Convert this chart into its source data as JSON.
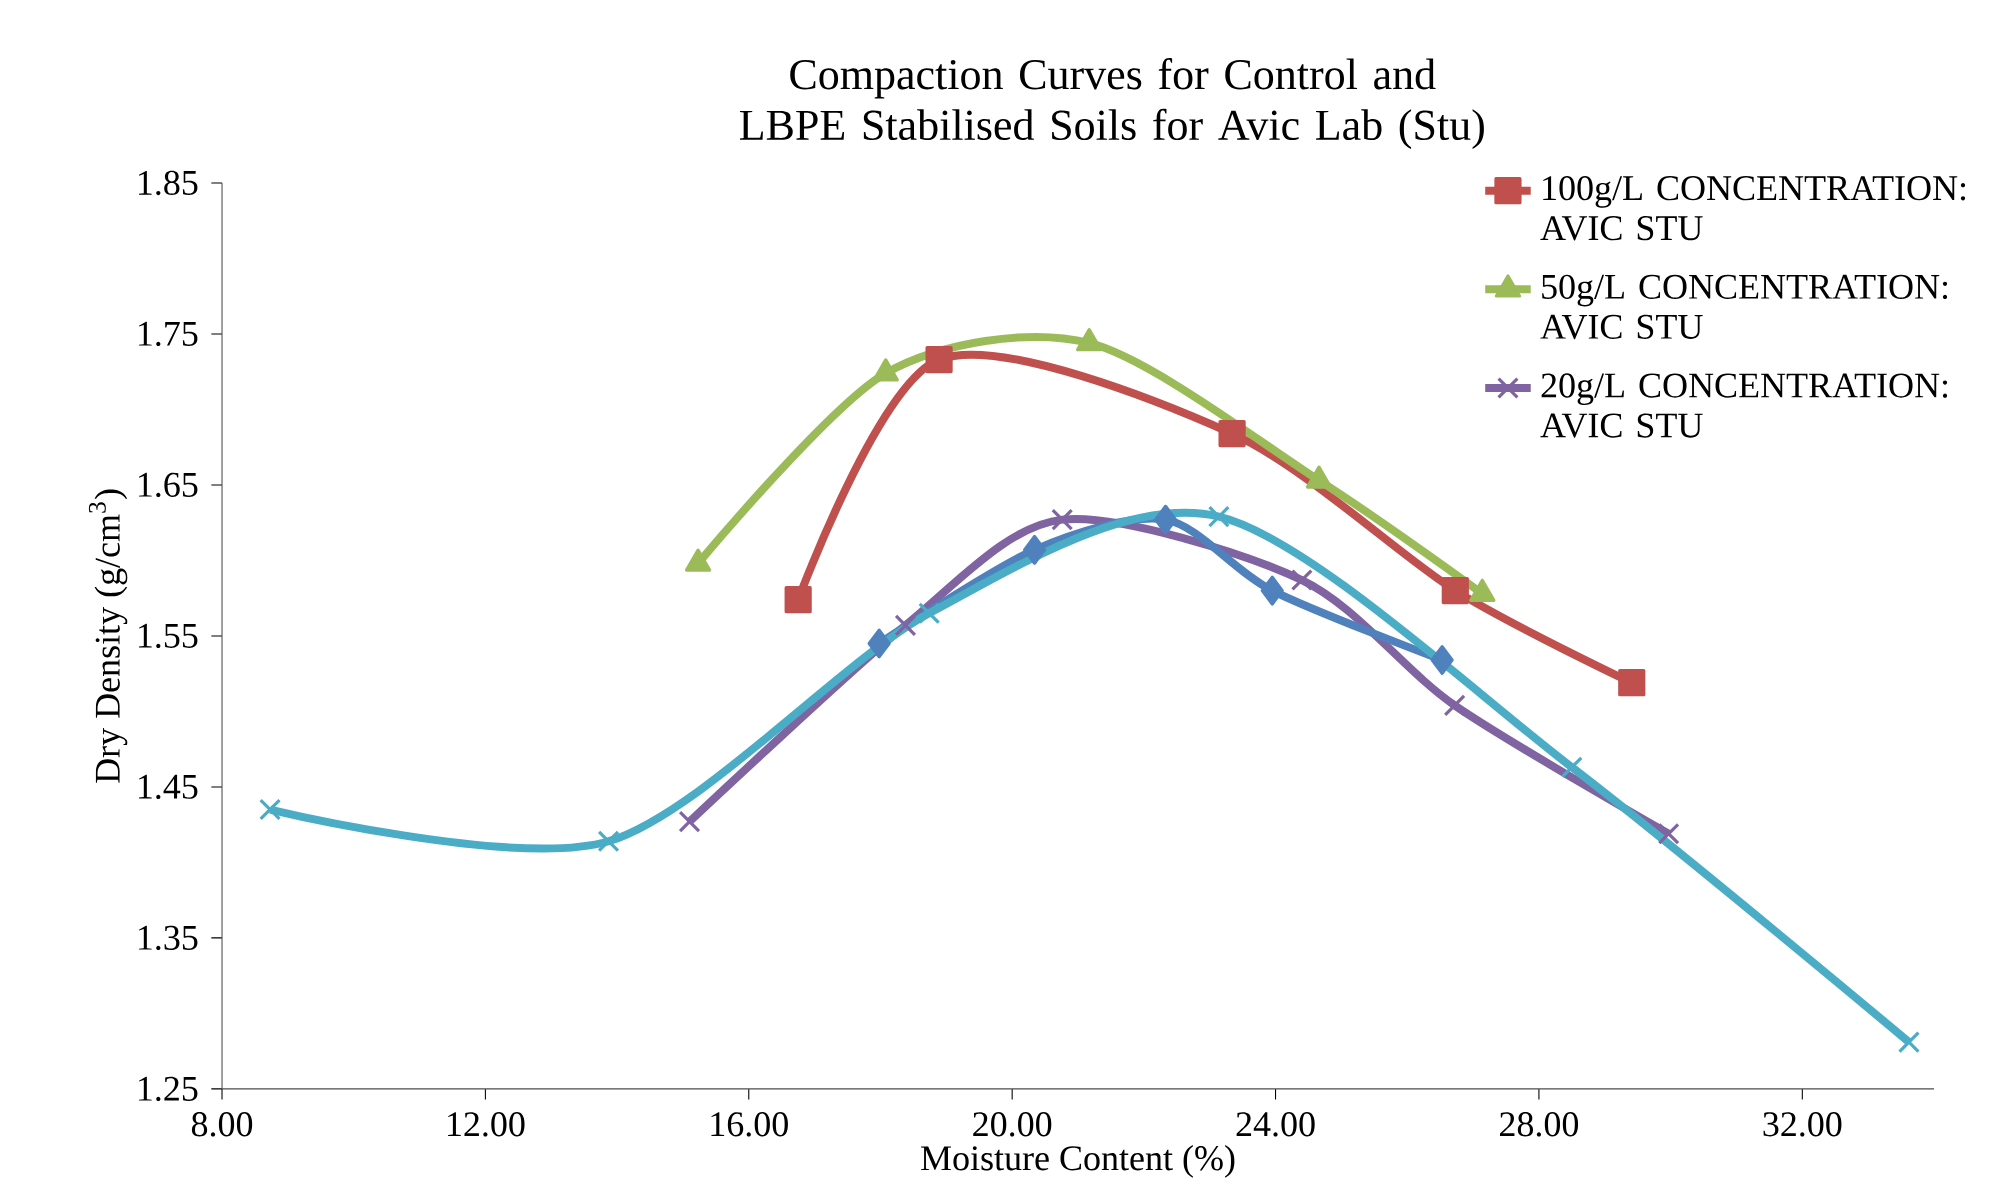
{
  "chart_data": {
    "type": "line",
    "title": "Compaction Curves for Control and LBPE Stabilised Soils for Avic Lab (Stu)",
    "xlabel": "Moisture Content (%)",
    "ylabel": "Dry Density (g/cm$^{3}$)",
    "xlim": [
      8,
      34
    ],
    "ylim": [
      1.25,
      1.85
    ],
    "xticks": [
      {
        "value": 8,
        "label": "8.00"
      },
      {
        "value": 12,
        "label": "12.00"
      },
      {
        "value": 16,
        "label": "16.00"
      },
      {
        "value": 20,
        "label": "20.00"
      },
      {
        "value": 24,
        "label": "24.00"
      },
      {
        "value": 28,
        "label": "28.00"
      },
      {
        "value": 32,
        "label": "32.00"
      }
    ],
    "yticks": [
      1.25,
      1.35,
      1.45,
      1.55,
      1.65,
      1.75,
      1.85
    ],
    "legend": "top right",
    "series": [
      {
        "name": "100g/L CONCENTRATION: AVIC STU",
        "color": "#c0504d",
        "marker": "square",
        "x": [
          16.75,
          18.89,
          23.34,
          26.73,
          29.41
        ],
        "values": [
          1.574,
          1.733,
          1.684,
          1.58,
          1.519
        ]
      },
      {
        "name": "50g/L CONCENTRATION: AVIC STU",
        "color": "#9bbb59",
        "marker": "triangle",
        "x": [
          15.23,
          18.08,
          21.17,
          24.66,
          27.14
        ],
        "values": [
          1.598,
          1.724,
          1.744,
          1.653,
          1.578
        ]
      },
      {
        "name": "20g/L CONCENTRATION: AVIC STU",
        "color": "#8064a2",
        "marker": "cross",
        "x": [
          15.1,
          18.38,
          20.76,
          24.4,
          26.72,
          29.97
        ],
        "values": [
          1.427,
          1.557,
          1.627,
          1.587,
          1.504,
          1.419
        ]
      },
      {
        "color": "#4f81bd",
        "marker": "diamond",
        "x": [
          17.98,
          20.34,
          22.33,
          23.95,
          26.53
        ],
        "values": [
          1.545,
          1.607,
          1.627,
          1.58,
          1.534
        ]
      },
      {
        "color": "#4bacc6",
        "marker": "cross",
        "x": [
          8.73,
          13.87,
          18.74,
          23.14,
          28.5,
          33.62
        ],
        "values": [
          1.435,
          1.414,
          1.565,
          1.629,
          1.463,
          1.281
        ]
      }
    ]
  }
}
